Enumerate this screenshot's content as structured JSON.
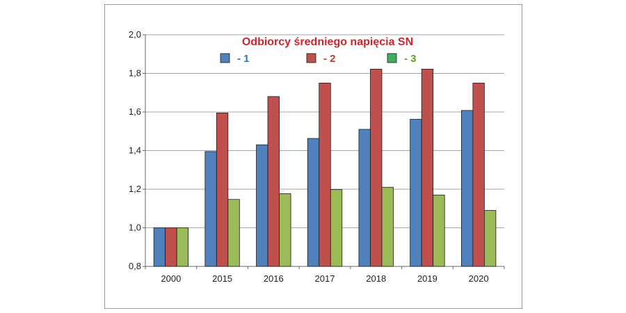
{
  "chart_data": {
    "type": "bar",
    "title": "Odbiorcy średniego napięcia SN",
    "title_color": "#d2232a",
    "categories": [
      "2000",
      "2015",
      "2016",
      "2017",
      "2018",
      "2019",
      "2020"
    ],
    "series": [
      {
        "name": "- 1",
        "color": "#4f81bd",
        "label_color": "#2e75b6",
        "values": [
          1.0,
          1.395,
          1.43,
          1.463,
          1.51,
          1.562,
          1.608
        ]
      },
      {
        "name": "- 2",
        "color": "#c0504d",
        "label_color": "#c0392b",
        "values": [
          1.0,
          1.595,
          1.68,
          1.75,
          1.822,
          1.822,
          1.75
        ]
      },
      {
        "name": "- 3",
        "color": "#9bbb59",
        "label_color": "#5aa02c",
        "values": [
          1.0,
          1.147,
          1.177,
          1.198,
          1.21,
          1.17,
          1.09
        ]
      }
    ],
    "legend_markers": [
      {
        "color": "#4f81bd"
      },
      {
        "color": "#c0504d"
      },
      {
        "color": "#3fae5f"
      }
    ],
    "ylim": [
      0.8,
      2.0
    ],
    "yticks": [
      "0,8",
      "1,0",
      "1,2",
      "1,4",
      "1,6",
      "1,8",
      "2,0"
    ],
    "ytick_values": [
      0.8,
      1.0,
      1.2,
      1.4,
      1.6,
      1.8,
      2.0
    ],
    "grid": true,
    "legend_position": "top"
  }
}
